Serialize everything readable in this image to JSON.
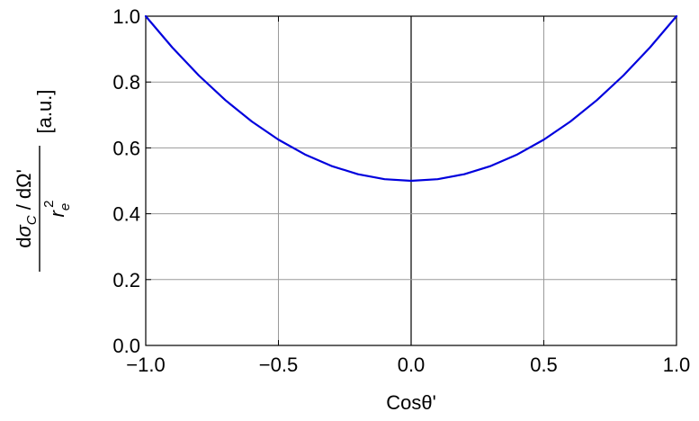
{
  "chart_data": {
    "type": "line",
    "title": "",
    "xlabel": "Cosθ'",
    "ylabel": {
      "numerator_d1": "d",
      "numerator_sigma": "σ",
      "numerator_sub": "C",
      "numerator_div": " / d",
      "numerator_omega": "Ω'",
      "denominator_r": "r",
      "denominator_sub": "e",
      "denominator_sup": "2",
      "units": "[a.u.]"
    },
    "xlim": [
      -1.0,
      1.0
    ],
    "ylim": [
      0.0,
      1.0
    ],
    "xticks": [
      -1.0,
      -0.5,
      0.0,
      0.5,
      1.0
    ],
    "xtick_labels": [
      "−1.0",
      "−0.5",
      "0.0",
      "0.5",
      "1.0"
    ],
    "yticks": [
      0.0,
      0.2,
      0.4,
      0.6,
      0.8,
      1.0
    ],
    "ytick_labels": [
      "0.0",
      "0.2",
      "0.4",
      "0.6",
      "0.8",
      "1.0"
    ],
    "grid": true,
    "series": [
      {
        "color": "#0000dd",
        "x": [
          -1.0,
          -0.9,
          -0.8,
          -0.7,
          -0.6,
          -0.5,
          -0.4,
          -0.3,
          -0.2,
          -0.1,
          0.0,
          0.1,
          0.2,
          0.3,
          0.4,
          0.5,
          0.6,
          0.7,
          0.8,
          0.9,
          1.0
        ],
        "y": [
          1.0,
          0.905,
          0.82,
          0.745,
          0.68,
          0.625,
          0.58,
          0.545,
          0.52,
          0.505,
          0.5,
          0.505,
          0.52,
          0.545,
          0.58,
          0.625,
          0.68,
          0.745,
          0.82,
          0.905,
          1.0
        ]
      }
    ]
  },
  "colors": {
    "grid": "#9a9a9a",
    "axis": "#000000",
    "zero_line": "#000000"
  }
}
